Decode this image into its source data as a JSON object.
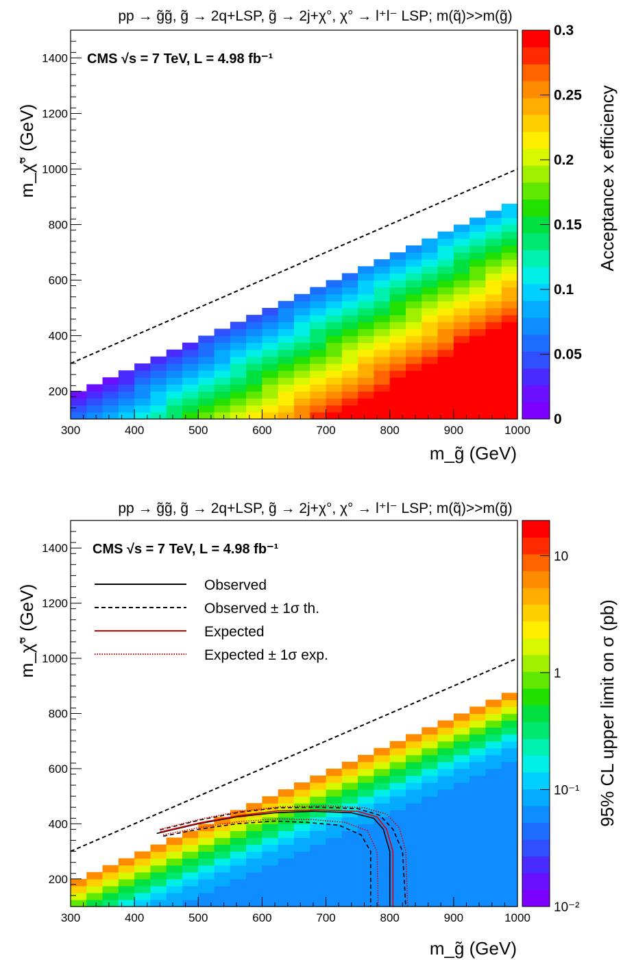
{
  "charts": [
    {
      "title": "pp → g̃g̃,  g̃ → 2q+LSP, g̃ → 2j+χ°, χ° → l⁺l⁻ LSP;  m(q̃)>>m(g̃)",
      "annotation": "CMS √s = 7 TeV,  L = 4.98 fb⁻¹",
      "xlabel": "m_g̃ (GeV)",
      "ylabel": "m_χ̃° (GeV)",
      "zlabel": "Acceptance x efficiency",
      "x_ticks": [
        "300",
        "400",
        "500",
        "600",
        "700",
        "800",
        "900",
        "1000"
      ],
      "y_ticks": [
        "200",
        "400",
        "600",
        "800",
        "1000",
        "1200",
        "1400"
      ],
      "z_ticks": [
        "0",
        "0.05",
        "0.1",
        "0.15",
        "0.2",
        "0.25",
        "0.3"
      ]
    },
    {
      "title": "pp → g̃g̃,  g̃ → 2q+LSP, g̃ → 2j+χ°, χ° → l⁺l⁻ LSP;  m(q̃)>>m(g̃)",
      "annotation": "CMS √s = 7 TeV,  L = 4.98 fb⁻¹",
      "xlabel": "m_g̃ (GeV)",
      "ylabel": "m_χ̃° (GeV)",
      "zlabel": "95% CL upper limit on σ (pb)",
      "x_ticks": [
        "300",
        "400",
        "500",
        "600",
        "700",
        "800",
        "900",
        "1000"
      ],
      "y_ticks": [
        "200",
        "400",
        "600",
        "800",
        "1000",
        "1200",
        "1400"
      ],
      "z_ticks": [
        "10⁻²",
        "10⁻¹",
        "1",
        "10"
      ],
      "legend": [
        "Observed",
        "Observed ± 1σ th.",
        "Expected",
        "Expected ± 1σ exp."
      ]
    }
  ],
  "chart_data": [
    {
      "type": "heatmap",
      "title": "pp → g̃g̃,  g̃ → 2q+LSP, g̃ → 2j+χ°, χ° → l⁺l⁻ LSP;  m(q̃)>>m(g̃)",
      "xlabel": "m_g̃ (GeV)",
      "ylabel": "m_χ̃° (GeV)",
      "zlabel": "Acceptance x efficiency",
      "xlim": [
        300,
        1000
      ],
      "ylim": [
        100,
        1500
      ],
      "zlim": [
        0,
        0.3
      ],
      "z_scale": "linear",
      "cell_size_gev": 25,
      "region": "m_chi0 from 100 up to about m_gluino - 100 GeV",
      "z_description": "Acceptance rises with m_gluino - m_chi0; ~0.01 near the diagonal edge, up to 0.3 at large mass splitting",
      "diagonal_line": {
        "style": "dashed",
        "points": [
          [
            300,
            300
          ],
          [
            1000,
            1000
          ]
        ]
      }
    },
    {
      "type": "heatmap",
      "title": "pp → g̃g̃,  g̃ → 2q+LSP, g̃ → 2j+χ°, χ° → l⁺l⁻ LSP;  m(q̃)>>m(g̃)",
      "xlabel": "m_g̃ (GeV)",
      "ylabel": "m_χ̃° (GeV)",
      "zlabel": "95% CL upper limit on σ (pb)",
      "xlim": [
        300,
        1000
      ],
      "ylim": [
        100,
        1500
      ],
      "zlim": [
        0.01,
        20
      ],
      "z_scale": "log",
      "cell_size_gev": 25,
      "z_description": "Upper limit ~10 pb near the diagonal edge, falling to ~0.05 pb at large mass splitting",
      "diagonal_line": {
        "style": "dashed",
        "points": [
          [
            300,
            300
          ],
          [
            1000,
            1000
          ]
        ]
      },
      "contours": [
        {
          "name": "Observed",
          "color": "#000000",
          "style": "solid",
          "points": [
            [
              435,
              365
            ],
            [
              500,
              400
            ],
            [
              560,
              425
            ],
            [
              620,
              440
            ],
            [
              680,
              445
            ],
            [
              740,
              440
            ],
            [
              775,
              420
            ],
            [
              790,
              380
            ],
            [
              800,
              300
            ],
            [
              800,
              100
            ]
          ]
        },
        {
          "name": "Observed ± 1σ th. (upper)",
          "color": "#000000",
          "style": "dashed",
          "points": [
            [
              440,
              378
            ],
            [
              505,
              415
            ],
            [
              565,
              442
            ],
            [
              625,
              458
            ],
            [
              690,
              460
            ],
            [
              750,
              455
            ],
            [
              785,
              430
            ],
            [
              805,
              380
            ],
            [
              820,
              300
            ],
            [
              825,
              100
            ]
          ]
        },
        {
          "name": "Observed ± 1σ th. (lower)",
          "color": "#000000",
          "style": "dashed",
          "points": [
            [
              445,
              355
            ],
            [
              500,
              380
            ],
            [
              560,
              400
            ],
            [
              620,
              410
            ],
            [
              670,
              405
            ],
            [
              720,
              395
            ],
            [
              755,
              360
            ],
            [
              770,
              300
            ],
            [
              770,
              100
            ]
          ]
        },
        {
          "name": "Expected",
          "color": "#dd0000",
          "style": "solid",
          "points": [
            [
              440,
              370
            ],
            [
              505,
              405
            ],
            [
              565,
              430
            ],
            [
              625,
              447
            ],
            [
              690,
              450
            ],
            [
              750,
              445
            ],
            [
              780,
              425
            ],
            [
              795,
              380
            ],
            [
              805,
              300
            ],
            [
              805,
              100
            ]
          ]
        },
        {
          "name": "Expected ± 1σ exp. (upper)",
          "color": "#dd0000",
          "style": "dotted",
          "points": [
            [
              440,
              380
            ],
            [
              505,
              418
            ],
            [
              565,
              445
            ],
            [
              630,
              462
            ],
            [
              700,
              465
            ],
            [
              760,
              458
            ],
            [
              795,
              435
            ],
            [
              815,
              385
            ],
            [
              825,
              300
            ],
            [
              828,
              100
            ]
          ]
        },
        {
          "name": "Expected ± 1σ exp. (lower)",
          "color": "#dd0000",
          "style": "dotted",
          "points": [
            [
              445,
              360
            ],
            [
              505,
              388
            ],
            [
              565,
              408
            ],
            [
              625,
              418
            ],
            [
              680,
              415
            ],
            [
              730,
              405
            ],
            [
              765,
              375
            ],
            [
              780,
              300
            ],
            [
              782,
              100
            ]
          ]
        }
      ]
    }
  ]
}
